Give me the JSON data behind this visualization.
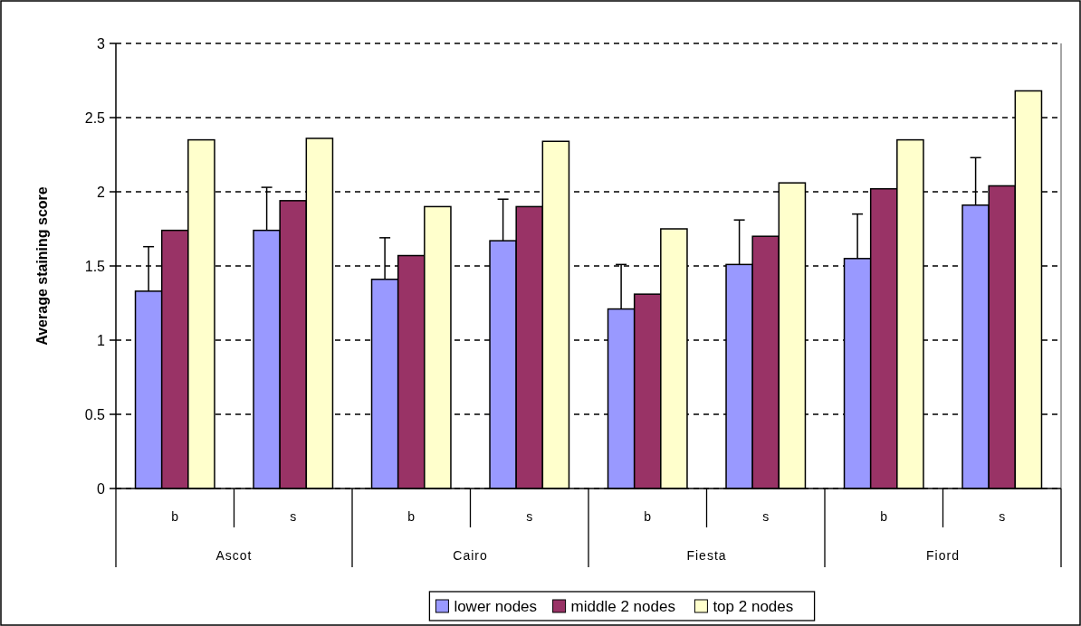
{
  "chart_data": {
    "type": "bar",
    "ylabel": "Average staining score",
    "categories": [
      "b",
      "s",
      "b",
      "s",
      "b",
      "s",
      "b",
      "s"
    ],
    "annotations": [
      "Ascot",
      "Cairo",
      "Fiesta",
      "Fiord"
    ],
    "series": [
      {
        "name": "lower nodes",
        "color": "#9999ff",
        "values": [
          1.33,
          1.74,
          1.41,
          1.67,
          1.21,
          1.51,
          1.55,
          1.91
        ],
        "errors": [
          [
            1.33,
            1.63
          ],
          [
            1.74,
            2.03
          ],
          [
            1.41,
            1.69
          ],
          [
            1.67,
            1.95
          ],
          [
            1.21,
            1.51
          ],
          [
            1.51,
            1.81
          ],
          [
            1.55,
            1.85
          ],
          [
            1.91,
            2.23
          ]
        ]
      },
      {
        "name": "middle 2 nodes",
        "color": "#993366",
        "values": [
          1.74,
          1.94,
          1.57,
          1.9,
          1.31,
          1.7,
          2.02,
          2.04
        ]
      },
      {
        "name": "top 2 nodes",
        "color": "#ffffcc",
        "values": [
          2.35,
          2.36,
          1.9,
          2.34,
          1.75,
          2.06,
          2.35,
          2.68
        ]
      }
    ],
    "ylim": [
      0,
      3
    ],
    "yticks": [
      0,
      0.5,
      1,
      1.5,
      2,
      2.5,
      3
    ],
    "grid": "y",
    "legend": "bottom"
  }
}
